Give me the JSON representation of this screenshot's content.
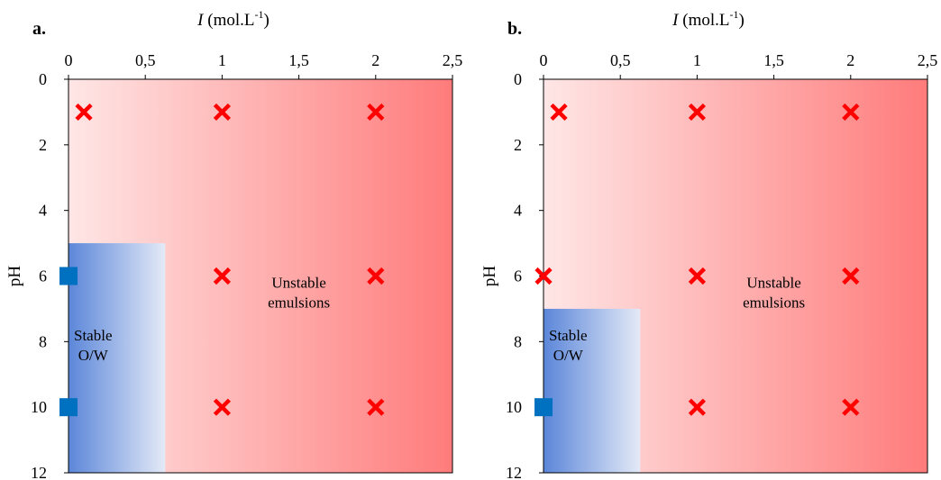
{
  "chart_data": [
    {
      "type": "scatter",
      "panel_label": "a.",
      "x_axis": {
        "label_italic": "I",
        "label_rest": " (mol.L",
        "label_sup": "-1",
        "label_close": ")",
        "position": "top",
        "range": [
          0,
          2.5
        ],
        "ticks": [
          "0",
          "0,5",
          "1",
          "1,5",
          "2",
          "2,5"
        ]
      },
      "y_axis": {
        "label": "pH",
        "range": [
          0,
          12
        ],
        "inverted": true,
        "ticks": [
          "0",
          "2",
          "4",
          "6",
          "8",
          "10",
          "12"
        ]
      },
      "grid": false,
      "regions": [
        {
          "name": "unstable",
          "label_lines": [
            "Unstable",
            "emulsions"
          ],
          "label_at": [
            1.5,
            6.5
          ],
          "x": [
            0,
            2.5
          ],
          "y": [
            0,
            12
          ],
          "color_from": "#ffe6e6",
          "color_to": "#ff7b7b"
        },
        {
          "name": "stable",
          "label_lines": [
            "Stable",
            "O/W"
          ],
          "label_at": [
            0.16,
            8.1
          ],
          "x": [
            0,
            0.63
          ],
          "y": [
            5,
            12
          ],
          "color_from": "#5b86d9",
          "color_to": "#e4eaf7"
        }
      ],
      "series": [
        {
          "marker": "cross",
          "color": "#ff0000",
          "points": [
            [
              0.1,
              1
            ],
            [
              1,
              1
            ],
            [
              2,
              1
            ],
            [
              1,
              6
            ],
            [
              2,
              6
            ],
            [
              1,
              10
            ],
            [
              2,
              10
            ]
          ]
        },
        {
          "marker": "square",
          "color": "#0070c0",
          "points": [
            [
              0,
              6
            ],
            [
              0,
              10
            ]
          ]
        }
      ]
    },
    {
      "type": "scatter",
      "panel_label": "b.",
      "x_axis": {
        "label_italic": "I",
        "label_rest": " (mol.L",
        "label_sup": "-1",
        "label_close": ")",
        "position": "top",
        "range": [
          0,
          2.5
        ],
        "ticks": [
          "0",
          "0,5",
          "1",
          "1,5",
          "2",
          "2,5"
        ]
      },
      "y_axis": {
        "label": "pH",
        "range": [
          0,
          12
        ],
        "inverted": true,
        "ticks": [
          "0",
          "2",
          "4",
          "6",
          "8",
          "10",
          "12"
        ]
      },
      "grid": false,
      "regions": [
        {
          "name": "unstable",
          "label_lines": [
            "Unstable",
            "emulsions"
          ],
          "label_at": [
            1.5,
            6.5
          ],
          "x": [
            0,
            2.5
          ],
          "y": [
            0,
            12
          ],
          "color_from": "#ffe6e6",
          "color_to": "#ff7b7b"
        },
        {
          "name": "stable",
          "label_lines": [
            "Stable",
            "O/W"
          ],
          "label_at": [
            0.16,
            8.1
          ],
          "x": [
            0,
            0.63
          ],
          "y": [
            7,
            12
          ],
          "color_from": "#5b86d9",
          "color_to": "#e4eaf7"
        }
      ],
      "series": [
        {
          "marker": "cross",
          "color": "#ff0000",
          "points": [
            [
              0.1,
              1
            ],
            [
              1,
              1
            ],
            [
              2,
              1
            ],
            [
              0,
              6
            ],
            [
              1,
              6
            ],
            [
              2,
              6
            ],
            [
              1,
              10
            ],
            [
              2,
              10
            ]
          ]
        },
        {
          "marker": "square",
          "color": "#0070c0",
          "points": [
            [
              0,
              10
            ]
          ]
        }
      ]
    }
  ]
}
